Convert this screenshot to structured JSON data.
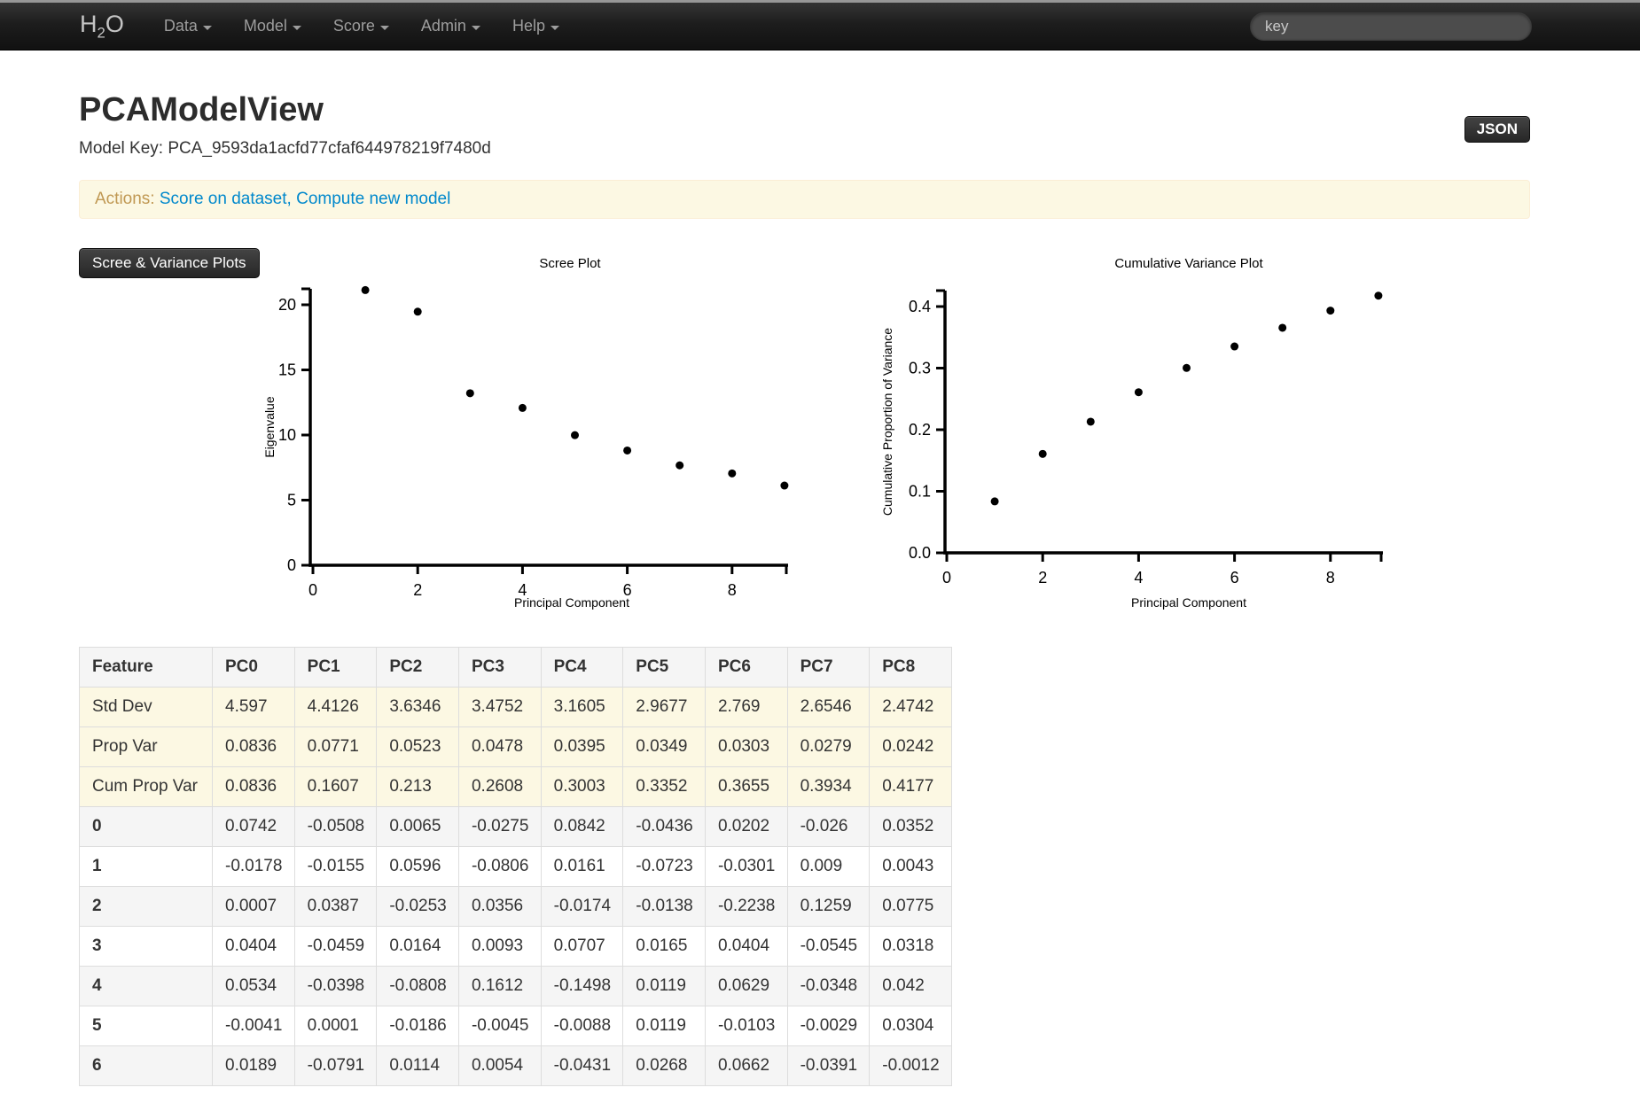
{
  "navbar": {
    "brand": {
      "pre": "H",
      "sub": "2",
      "post": "O"
    },
    "items": [
      {
        "label": "Data"
      },
      {
        "label": "Model"
      },
      {
        "label": "Score"
      },
      {
        "label": "Admin"
      },
      {
        "label": "Help"
      }
    ],
    "search_placeholder": "key"
  },
  "header": {
    "json_button": "JSON",
    "title": "PCAModelView",
    "model_key_label": "Model Key:",
    "model_key_value": "PCA_9593da1acfd77cfaf644978219f7480d"
  },
  "actions": {
    "label": "Actions:",
    "links": [
      {
        "text": "Score on dataset"
      },
      {
        "text": "Compute new model"
      }
    ],
    "separator": ", "
  },
  "plots": {
    "toggle_label": "Scree & Variance Plots"
  },
  "chart_data": [
    {
      "type": "scatter",
      "title": "Scree Plot",
      "xlabel": "Principal Component",
      "ylabel": "Eigenvalue",
      "x": [
        1,
        2,
        3,
        4,
        5,
        6,
        7,
        8,
        9
      ],
      "y": [
        21.13,
        19.47,
        13.21,
        12.08,
        9.99,
        8.81,
        7.67,
        7.05,
        6.12
      ],
      "xticks": [
        0,
        2,
        4,
        6,
        8
      ],
      "xtick_labels": [
        "0",
        "2",
        "4",
        "6",
        "8"
      ],
      "yticks": [
        0,
        5,
        10,
        15,
        20
      ],
      "ytick_labels": [
        "0",
        "5",
        "10",
        "15",
        "20"
      ],
      "xlim": [
        0,
        9.1
      ],
      "ylim": [
        0,
        21.3
      ],
      "grid": false,
      "legend": "none",
      "point_color": "#000000"
    },
    {
      "type": "scatter",
      "title": "Cumulative Variance Plot",
      "xlabel": "Principal Component",
      "ylabel": "Cumulative Proportion of Variance",
      "x": [
        1,
        2,
        3,
        4,
        5,
        6,
        7,
        8,
        9
      ],
      "y": [
        0.0836,
        0.1607,
        0.213,
        0.2608,
        0.3003,
        0.3352,
        0.3655,
        0.3934,
        0.4177
      ],
      "xticks": [
        0,
        2,
        4,
        6,
        8
      ],
      "xtick_labels": [
        "0",
        "2",
        "4",
        "6",
        "8"
      ],
      "yticks": [
        0,
        0.1,
        0.2,
        0.3,
        0.4
      ],
      "ytick_labels": [
        "0.0",
        "0.1",
        "0.2",
        "0.3",
        "0.4"
      ],
      "xlim": [
        0,
        9.1
      ],
      "ylim": [
        0,
        0.43
      ],
      "grid": false,
      "legend": "none",
      "point_color": "#000000"
    }
  ],
  "table": {
    "columns": [
      "Feature",
      "PC0",
      "PC1",
      "PC2",
      "PC3",
      "PC4",
      "PC5",
      "PC6",
      "PC7",
      "PC8"
    ],
    "rows": [
      {
        "label": "Std Dev",
        "type": "summary",
        "values": [
          "4.597",
          "4.4126",
          "3.6346",
          "3.4752",
          "3.1605",
          "2.9677",
          "2.769",
          "2.6546",
          "2.4742"
        ]
      },
      {
        "label": "Prop Var",
        "type": "summary",
        "values": [
          "0.0836",
          "0.0771",
          "0.0523",
          "0.0478",
          "0.0395",
          "0.0349",
          "0.0303",
          "0.0279",
          "0.0242"
        ]
      },
      {
        "label": "Cum Prop Var",
        "type": "summary",
        "values": [
          "0.0836",
          "0.1607",
          "0.213",
          "0.2608",
          "0.3003",
          "0.3352",
          "0.3655",
          "0.3934",
          "0.4177"
        ]
      },
      {
        "label": "0",
        "type": "loading",
        "values": [
          "0.0742",
          "-0.0508",
          "0.0065",
          "-0.0275",
          "0.0842",
          "-0.0436",
          "0.0202",
          "-0.026",
          "0.0352"
        ]
      },
      {
        "label": "1",
        "type": "loading",
        "values": [
          "-0.0178",
          "-0.0155",
          "0.0596",
          "-0.0806",
          "0.0161",
          "-0.0723",
          "-0.0301",
          "0.009",
          "0.0043"
        ]
      },
      {
        "label": "2",
        "type": "loading",
        "values": [
          "0.0007",
          "0.0387",
          "-0.0253",
          "0.0356",
          "-0.0174",
          "-0.0138",
          "-0.2238",
          "0.1259",
          "0.0775"
        ]
      },
      {
        "label": "3",
        "type": "loading",
        "values": [
          "0.0404",
          "-0.0459",
          "0.0164",
          "0.0093",
          "0.0707",
          "0.0165",
          "0.0404",
          "-0.0545",
          "0.0318"
        ]
      },
      {
        "label": "4",
        "type": "loading",
        "values": [
          "0.0534",
          "-0.0398",
          "-0.0808",
          "0.1612",
          "-0.1498",
          "0.0119",
          "0.0629",
          "-0.0348",
          "0.042"
        ]
      },
      {
        "label": "5",
        "type": "loading",
        "values": [
          "-0.0041",
          "0.0001",
          "-0.0186",
          "-0.0045",
          "-0.0088",
          "0.0119",
          "-0.0103",
          "-0.0029",
          "0.0304"
        ]
      },
      {
        "label": "6",
        "type": "loading",
        "values": [
          "0.0189",
          "-0.0791",
          "0.0114",
          "0.0054",
          "-0.0431",
          "0.0268",
          "0.0662",
          "-0.0391",
          "-0.0012"
        ]
      }
    ]
  }
}
